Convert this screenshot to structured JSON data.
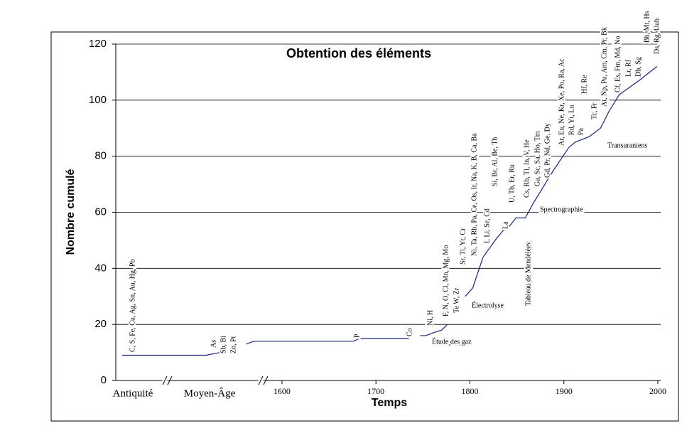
{
  "chart_data": {
    "type": "line",
    "title": "Obtention des éléments",
    "x_label": "Temps",
    "y_label": "Nombre cumulé",
    "ylim": [
      0,
      120
    ],
    "yticks": [
      0,
      20,
      40,
      60,
      80,
      100,
      120
    ],
    "xlim": [
      1560,
      2000
    ],
    "xticks": [
      1600,
      1700,
      1800,
      1900,
      2000
    ],
    "grid": true,
    "eras": [
      "Antiquité",
      "Moyen-Âge"
    ],
    "era_values": [
      9,
      10
    ],
    "series": [
      {
        "name": null,
        "color": "#1a237e",
        "x": [
          1562,
          1570,
          1676,
          1683,
          1735,
          1740,
          1747,
          1753,
          1761,
          1770,
          1776,
          1785,
          1795,
          1803,
          1814,
          1829,
          1837,
          1842,
          1849,
          1859,
          1867,
          1889,
          1899,
          1905,
          1912,
          1927,
          1939,
          1948,
          1959,
          1980,
          1999
        ],
        "values": [
          13,
          14,
          14,
          15,
          15,
          null,
          16,
          16,
          17,
          18,
          20,
          null,
          30,
          33,
          44,
          51,
          54,
          55,
          58,
          58,
          63,
          75,
          80,
          83,
          85,
          87,
          90,
          96,
          102,
          107,
          112
        ]
      }
    ],
    "annotations": [
      "C, S, Fe, Cu, Ag, Sn, Au, Hg, Pb",
      "As",
      "Sb, Bi",
      "Zn, Pt",
      "P",
      "Co",
      "Ni, H",
      "F, N, O, Cl, Mn, Mg, Mo",
      "Te W, Zr",
      "Sr, Ti, Yt, Cr",
      "Ni, Ta, Rh, Pa, Ce, Os, Ir, Na, K, B, Ca, Ba",
      "I, Li, Se, Cd",
      "Si, Br, Al, Be, Th",
      "La",
      "U, Tb, Er, Ru",
      "Cs, Rb, Tl, In, V, He",
      "Ga, Sc, Sa, Ho, Tm",
      "Gd, Pr, Nd, Ge, Dy",
      "Ar, Eu, Ne, Kr, Xe, Po, Ra, Ac",
      "Rd, Yt, Lu",
      "Pa",
      "Hf, Re",
      "Tc, Fr",
      "At, Np, Pu, Am, Cm, Pr, Bk",
      "Cf, Es, Fm, Md, No",
      "Lr, Rf",
      "Db, Sg",
      "Bh, Mt, Hs",
      "Ds, Rg, Uub"
    ],
    "periods": [
      "Étude des gaz",
      "Électrolyse",
      "Tableau de Mendéléev",
      "Spectrographie",
      "Transuraniens"
    ]
  }
}
